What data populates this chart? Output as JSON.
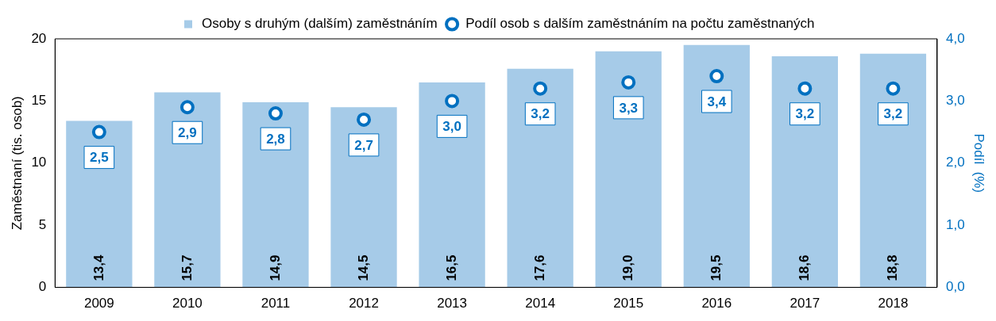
{
  "chart_data": {
    "type": "bar",
    "ylabel": "Zaměstnaní (tis. osob)",
    "y2label": "Podíl  (%)",
    "categories": [
      "2009",
      "2010",
      "2011",
      "2012",
      "2013",
      "2014",
      "2015",
      "2016",
      "2017",
      "2018"
    ],
    "series": [
      {
        "name": "Osoby s druhým (dalším) zaměstnáním",
        "color": "#a6cbe8",
        "values": [
          13.4,
          15.7,
          14.9,
          14.5,
          16.5,
          17.6,
          19.0,
          19.5,
          18.6,
          18.8
        ],
        "value_labels": [
          "13,4",
          "15,7",
          "14,9",
          "14,5",
          "16,5",
          "17,6",
          "19,0",
          "19,5",
          "18,6",
          "18,8"
        ]
      },
      {
        "name": "Podíl osob s dalším zaměstnáním na počtu zaměstnaných",
        "type": "scatter",
        "axis": "y2",
        "color": "#0070c0",
        "values": [
          2.5,
          2.9,
          2.8,
          2.7,
          3.0,
          3.2,
          3.3,
          3.4,
          3.2,
          3.2
        ],
        "value_labels": [
          "2,5",
          "2,9",
          "2,8",
          "2,7",
          "3,0",
          "3,2",
          "3,3",
          "3,4",
          "3,2",
          "3,2"
        ]
      }
    ],
    "ylim": [
      0,
      20
    ],
    "yticks": [
      0,
      5,
      10,
      15,
      20
    ],
    "y2lim": [
      0,
      4
    ],
    "y2ticks": [
      {
        "value": 0,
        "label": "0,0"
      },
      {
        "value": 1,
        "label": "1,0"
      },
      {
        "value": 2,
        "label": "2,0"
      },
      {
        "value": 3,
        "label": "3,0"
      },
      {
        "value": 4,
        "label": "4,0"
      }
    ],
    "grid": false,
    "legend": "top",
    "marker": "circle"
  }
}
